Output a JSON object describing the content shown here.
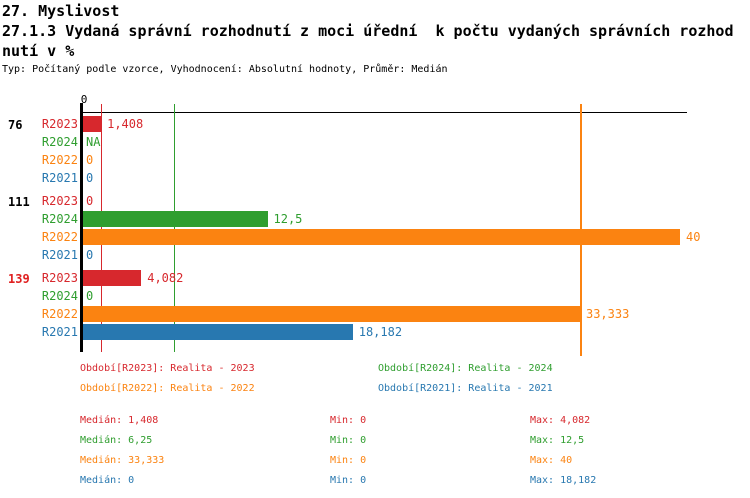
{
  "header": {
    "title_line1": "27. Myslivost",
    "title_line2": "27.1.3 Vydaná správní rozhodnutí z moci úřední  k počtu vydaných správních rozhod",
    "title_line3": "nutí v %",
    "subtitle": "Typ: Počítaný podle vzorce, Vyhodnocení: Absolutní hodnoty, Průměr: Medián"
  },
  "colors": {
    "R2023": "#d7282d",
    "R2024": "#2f9e2f",
    "R2022": "#fb8311",
    "R2021": "#2878b0",
    "group_id_default": "#000000",
    "group_id_alert": "#e02020",
    "axis": "#000000"
  },
  "axis": {
    "zero_label": "0"
  },
  "chart_data": {
    "type": "bar",
    "orientation": "horizontal",
    "unit": "%",
    "title": "27.1.3 Vydaná správní rozhodnutí z moci úřední k počtu vydaných správních rozhodnutí v %",
    "x_axis": {
      "min": 0,
      "max": 40.5,
      "tick_labels": [
        "0"
      ],
      "grid": false
    },
    "series_order": [
      "R2023",
      "R2024",
      "R2022",
      "R2021"
    ],
    "groups": [
      {
        "id": "76",
        "id_style": "default",
        "rows": [
          {
            "label": "R2023",
            "value": 1.408,
            "value_label": "1,408"
          },
          {
            "label": "R2024",
            "value": null,
            "value_label": "NA"
          },
          {
            "label": "R2022",
            "value": 0,
            "value_label": "0"
          },
          {
            "label": "R2021",
            "value": 0,
            "value_label": "0"
          }
        ]
      },
      {
        "id": "111",
        "id_style": "default",
        "rows": [
          {
            "label": "R2023",
            "value": 0,
            "value_label": "0"
          },
          {
            "label": "R2024",
            "value": 12.5,
            "value_label": "12,5"
          },
          {
            "label": "R2022",
            "value": 40,
            "value_label": "40"
          },
          {
            "label": "R2021",
            "value": 0,
            "value_label": "0"
          }
        ]
      },
      {
        "id": "139",
        "id_style": "alert",
        "rows": [
          {
            "label": "R2023",
            "value": 4.082,
            "value_label": "4,082"
          },
          {
            "label": "R2024",
            "value": 0,
            "value_label": "0"
          },
          {
            "label": "R2022",
            "value": 33.333,
            "value_label": "33,333"
          },
          {
            "label": "R2021",
            "value": 18.182,
            "value_label": "18,182"
          }
        ]
      }
    ],
    "median_lines": [
      {
        "series": "R2023",
        "value": 1.408
      },
      {
        "series": "R2024",
        "value": 6.25
      },
      {
        "series": "R2022",
        "value": 33.333
      },
      {
        "series": "R2021",
        "value": 0
      }
    ],
    "legend": [
      {
        "series": "R2023",
        "label": "Období[R2023]: Realita - 2023"
      },
      {
        "series": "R2024",
        "label": "Období[R2024]: Realita - 2024"
      },
      {
        "series": "R2022",
        "label": "Období[R2022]: Realita - 2022"
      },
      {
        "series": "R2021",
        "label": "Období[R2021]: Realita - 2021"
      }
    ],
    "stats_labels": {
      "median": "Medián",
      "min": "Min",
      "max": "Max"
    },
    "stats": [
      {
        "series": "R2023",
        "median": "1,408",
        "min": "0",
        "max": "4,082"
      },
      {
        "series": "R2024",
        "median": "6,25",
        "min": "0",
        "max": "12,5"
      },
      {
        "series": "R2022",
        "median": "33,333",
        "min": "0",
        "max": "40"
      },
      {
        "series": "R2021",
        "median": "0",
        "min": "0",
        "max": "18,182"
      }
    ]
  }
}
